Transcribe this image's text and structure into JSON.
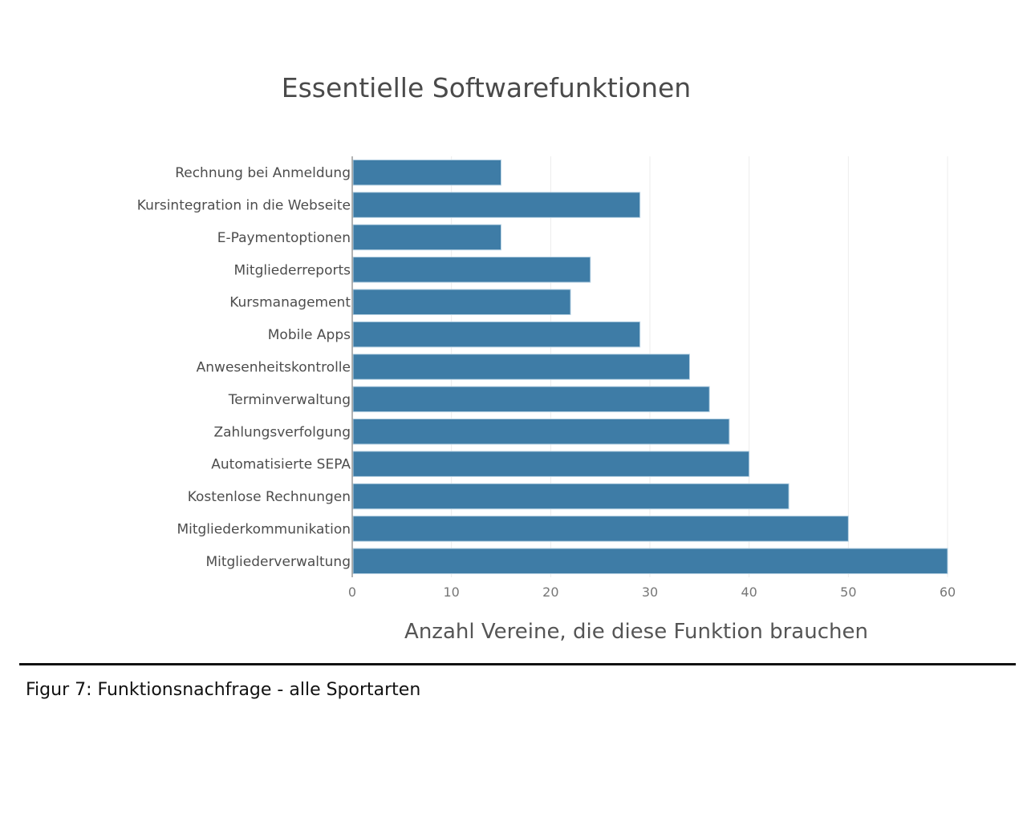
{
  "colors": {
    "bar_fill": "#3e7ca6",
    "bar_edge": "#b9d3e4",
    "grid": "#ececec",
    "axis_line": "#999999"
  },
  "figure_caption": "Figur 7: Funktionsnachfrage - alle Sportarten",
  "chart_data": {
    "type": "bar",
    "orientation": "horizontal",
    "title": "Essentielle Softwarefunktionen",
    "xlabel": "Anzahl Vereine, die diese Funktion brauchen",
    "ylabel": "",
    "xlim": [
      0,
      60
    ],
    "xticks": [
      0,
      10,
      20,
      30,
      40,
      50,
      60
    ],
    "grid": true,
    "legend": "none",
    "categories": [
      "Rechnung bei Anmeldung",
      "Kursintegration in die Webseite",
      "E-Paymentoptionen",
      "Mitgliederreports",
      "Kursmanagement",
      "Mobile Apps",
      "Anwesenheitskontrolle",
      "Terminverwaltung",
      "Zahlungsverfolgung",
      "Automatisierte SEPA",
      "Kostenlose Rechnungen",
      "Mitgliederkommunikation",
      "Mitgliederverwaltung"
    ],
    "values": [
      15,
      29,
      15,
      24,
      22,
      29,
      34,
      36,
      38,
      40,
      44,
      50,
      60
    ]
  }
}
